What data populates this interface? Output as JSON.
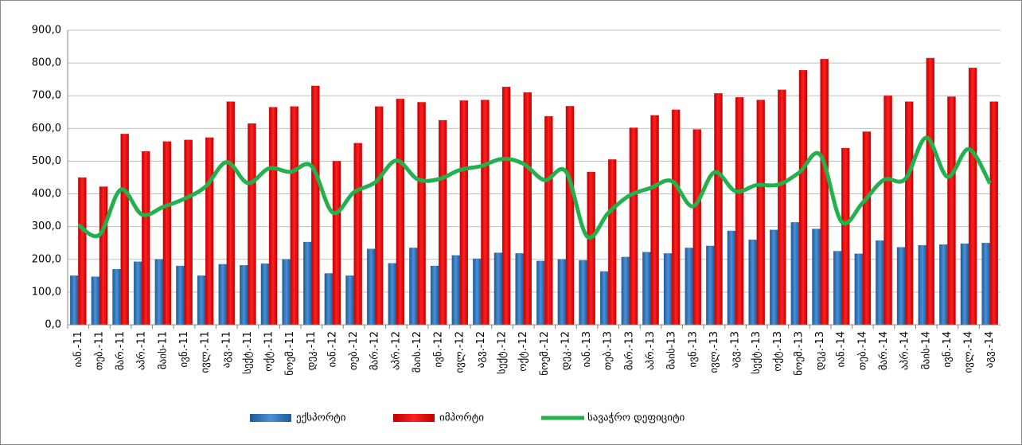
{
  "chart_data": {
    "type": "bar-line",
    "categories": [
      "იან.-11",
      "თებ.-11",
      "მარ.-11",
      "აპრ.-11",
      "მაის-11",
      "ივნ.-11",
      "ივლ.-11",
      "აგვ.-11",
      "სექტ.-11",
      "ოქტ.-11",
      "ნოემ.-11",
      "დეკ.-11",
      "იან.-12",
      "თებ.-12",
      "მარ.-12",
      "აპრ.-12",
      "მაის.-12",
      "ივნ.-12",
      "ივლ.-12",
      "აგვ.-12",
      "სექტ.-12",
      "ოქტ.-12",
      "ნოემ.-12",
      "დეკ.-12",
      "იან.-13",
      "თებ.-13",
      "მარ.-13",
      "აპრ.-13",
      "მაის-13",
      "ივნ.-13",
      "ივლ.-13",
      "აგვ.-13",
      "სექტ.-13",
      "ოქტ.-13",
      "ნოემ.-13",
      "დეკ.-13",
      "იან.-14",
      "თებ.-14",
      "მარ.-14",
      "აპრ.-14",
      "მაის-14",
      "ივნ.-14",
      "ივლ.-14",
      "აგვ.-14"
    ],
    "series": [
      {
        "name": "ექსპორტი",
        "kind": "bar",
        "color": "#2e75b6",
        "values": [
          150,
          147,
          170,
          193,
          200,
          180,
          150,
          185,
          182,
          187,
          200,
          253,
          157,
          150,
          232,
          188,
          235,
          180,
          212,
          202,
          220,
          218,
          195,
          200,
          197,
          163,
          207,
          222,
          218,
          235,
          241,
          287,
          260,
          290,
          313,
          293,
          225,
          217,
          257,
          237,
          243,
          245,
          248,
          250
        ]
      },
      {
        "name": "იმპორტი",
        "kind": "bar",
        "color": "#e31a1c",
        "values": [
          450,
          422,
          583,
          530,
          560,
          565,
          572,
          682,
          615,
          665,
          667,
          730,
          500,
          555,
          667,
          690,
          680,
          625,
          685,
          687,
          727,
          710,
          637,
          668,
          467,
          505,
          602,
          640,
          657,
          597,
          707,
          695,
          687,
          718,
          778,
          812,
          540,
          590,
          700,
          682,
          815,
          697,
          785,
          682
        ]
      },
      {
        "name": "სავაჭრო დეფიციტი",
        "kind": "line",
        "color": "#22b14c",
        "values": [
          305,
          275,
          413,
          337,
          360,
          385,
          422,
          497,
          433,
          478,
          467,
          485,
          343,
          405,
          435,
          502,
          445,
          445,
          473,
          485,
          507,
          492,
          442,
          468,
          270,
          342,
          395,
          418,
          439,
          362,
          466,
          408,
          427,
          428,
          465,
          519,
          315,
          373,
          443,
          445,
          572,
          452,
          537,
          432
        ]
      }
    ],
    "ylim": [
      0,
      900
    ],
    "yticks": [
      {
        "value": 0,
        "label": "0,0"
      },
      {
        "value": 100,
        "label": "100,0"
      },
      {
        "value": 200,
        "label": "200,0"
      },
      {
        "value": 300,
        "label": "300,0"
      },
      {
        "value": 400,
        "label": "400,0"
      },
      {
        "value": 500,
        "label": "500,0"
      },
      {
        "value": 600,
        "label": "600,0"
      },
      {
        "value": 700,
        "label": "700,0"
      },
      {
        "value": 800,
        "label": "800,0"
      },
      {
        "value": 900,
        "label": "900,0"
      }
    ],
    "grid": true
  }
}
